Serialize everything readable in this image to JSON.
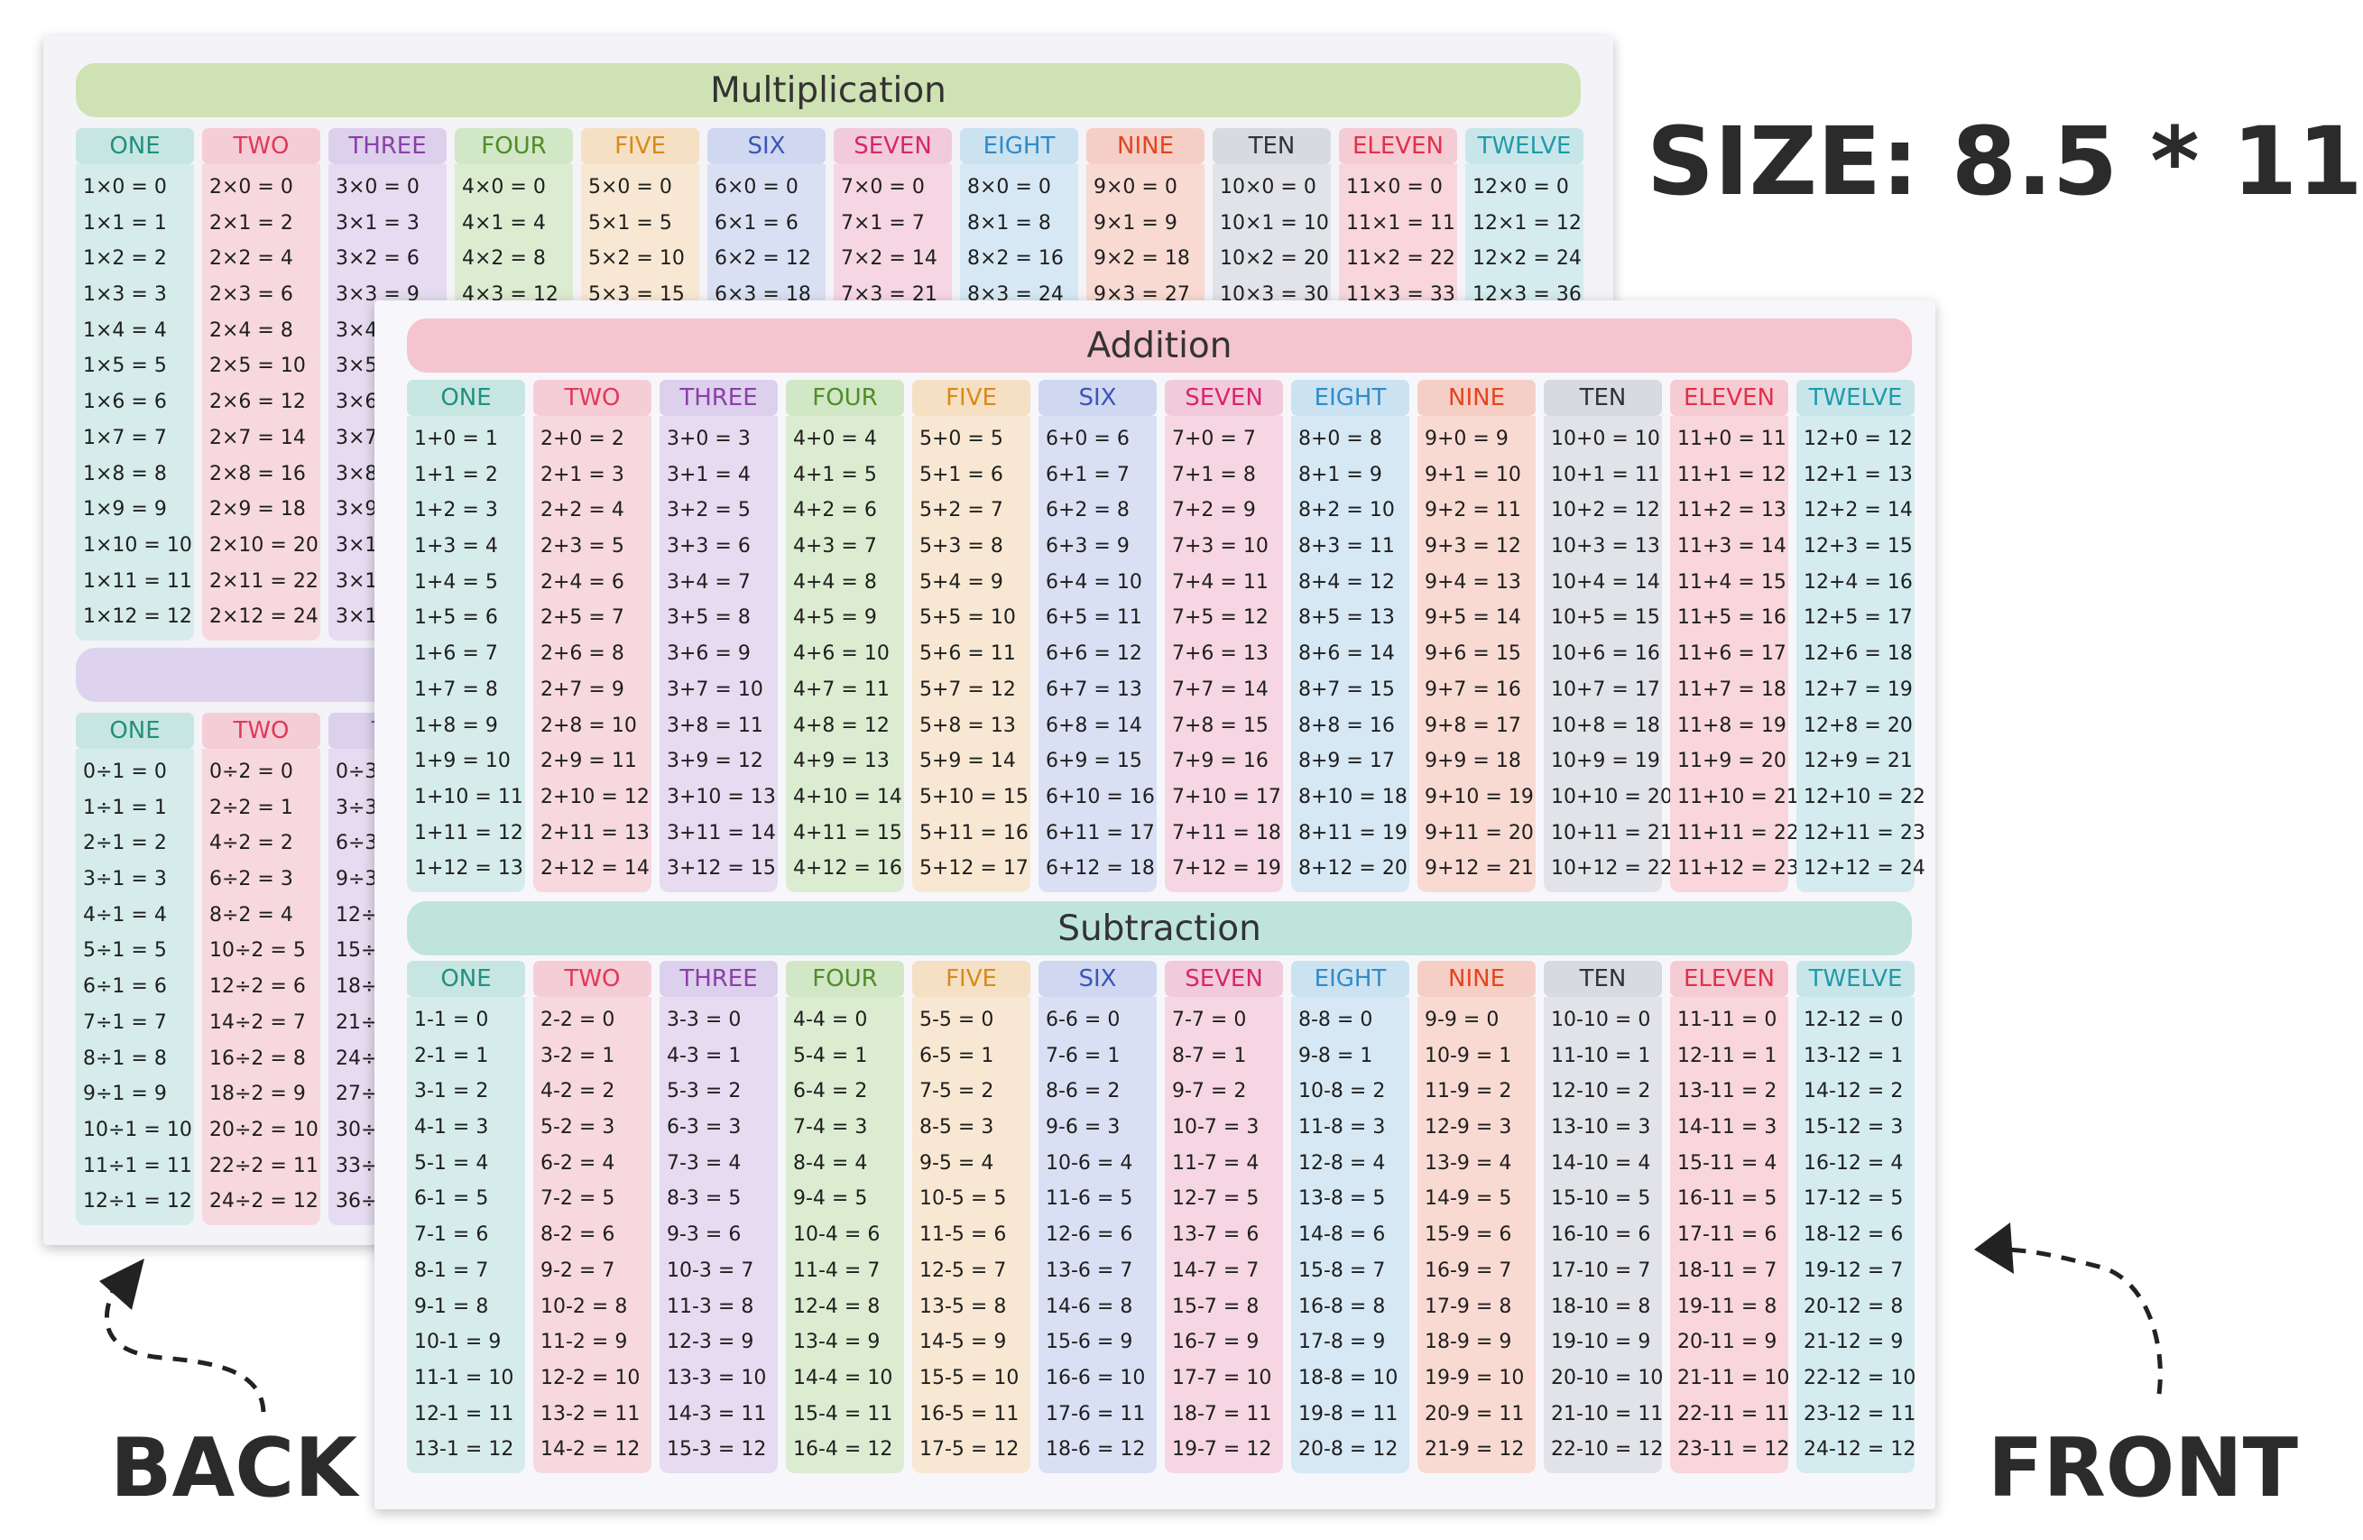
{
  "size_label": "SIZE: 8.5 * 11",
  "back_label": "BACK",
  "front_label": "FRONT",
  "column_headers": [
    "ONE",
    "TWO",
    "THREE",
    "FOUR",
    "FIVE",
    "SIX",
    "SEVEN",
    "EIGHT",
    "NINE",
    "TEN",
    "ELEVEN",
    "TWELVE"
  ],
  "column_colors": [
    "#21907f",
    "#e0395a",
    "#8b3fa8",
    "#4f8c2a",
    "#d98a1a",
    "#3b55b8",
    "#d6266e",
    "#2f8bc9",
    "#e2451f",
    "#333333",
    "#e0304b",
    "#1f9aa8"
  ],
  "column_tints": [
    "#d5ecea",
    "#f7d8df",
    "#e6dbf0",
    "#dcecd1",
    "#f8e8d3",
    "#d9e0f3",
    "#f6d6e2",
    "#d6e8f4",
    "#f8dad2",
    "#e1e3e8",
    "#f8d6db",
    "#d4ecef"
  ],
  "header_backgrounds": [
    "#c7e6e2",
    "#f5cdd6",
    "#ddd0ec",
    "#d2e7c5",
    "#f5e0c4",
    "#cfd8f0",
    "#f2cbdb",
    "#cbe2f1",
    "#f5cfc5",
    "#d7dae1",
    "#f5ccd3",
    "#c8e6ea"
  ],
  "back": {
    "multiplication_title": "Multiplication",
    "multiplication_color": "#cfe2b4",
    "division_color": "#ddd3ef",
    "multiplication": [
      [
        "1×0 = 0",
        "1×1 = 1",
        "1×2 = 2",
        "1×3 = 3",
        "1×4 = 4",
        "1×5 = 5",
        "1×6 = 6",
        "1×7 = 7",
        "1×8 = 8",
        "1×9 = 9",
        "1×10 = 10",
        "1×11 = 11",
        "1×12 = 12"
      ],
      [
        "2×0 = 0",
        "2×1 = 2",
        "2×2 = 4",
        "2×3 = 6",
        "2×4 = 8",
        "2×5 = 10",
        "2×6 = 12",
        "2×7 = 14",
        "2×8 = 16",
        "2×9 = 18",
        "2×10 = 20",
        "2×11 = 22",
        "2×12 = 24"
      ],
      [
        "3×0 = 0",
        "3×1 = 3",
        "3×2 = 6",
        "3×3 = 9",
        "3×4",
        "3×5",
        "3×6",
        "3×7",
        "3×8",
        "3×9",
        "3×1",
        "3×1",
        "3×1"
      ],
      [
        "4×0 = 0",
        "4×1 = 4",
        "4×2 = 8",
        "4×3 = 12"
      ],
      [
        "5×0 = 0",
        "5×1 = 5",
        "5×2 = 10",
        "5×3 = 15"
      ],
      [
        "6×0 = 0",
        "6×1 = 6",
        "6×2 = 12",
        "6×3 = 18"
      ],
      [
        "7×0 = 0",
        "7×1 = 7",
        "7×2 = 14",
        "7×3 = 21"
      ],
      [
        "8×0 = 0",
        "8×1 = 8",
        "8×2 = 16",
        "8×3 = 24"
      ],
      [
        "9×0 = 0",
        "9×1 = 9",
        "9×2 = 18",
        "9×3 = 27"
      ],
      [
        "10×0 = 0",
        "10×1 = 10",
        "10×2 = 20",
        "10×3 = 30"
      ],
      [
        "11×0 = 0",
        "11×1 = 11",
        "11×2 = 22",
        "11×3 = 33"
      ],
      [
        "12×0 = 0",
        "12×1 = 12",
        "12×2 = 24",
        "12×3 = 36"
      ]
    ],
    "division_headers": [
      "ONE",
      "TWO",
      "TH"
    ],
    "division": [
      [
        "0÷1 = 0",
        "1÷1 = 1",
        "2÷1 = 2",
        "3÷1 = 3",
        "4÷1 = 4",
        "5÷1 = 5",
        "6÷1 = 6",
        "7÷1 = 7",
        "8÷1 = 8",
        "9÷1 = 9",
        "10÷1 = 10",
        "11÷1 = 11",
        "12÷1 = 12"
      ],
      [
        "0÷2 = 0",
        "2÷2 = 1",
        "4÷2 = 2",
        "6÷2 = 3",
        "8÷2 = 4",
        "10÷2 = 5",
        "12÷2 = 6",
        "14÷2 = 7",
        "16÷2 = 8",
        "18÷2 = 9",
        "20÷2 = 10",
        "22÷2 = 11",
        "24÷2 = 12"
      ],
      [
        "0÷3",
        "3÷3",
        "6÷3",
        "9÷3",
        "12÷",
        "15÷",
        "18÷",
        "21÷",
        "24÷",
        "27÷",
        "30÷",
        "33÷",
        "36÷"
      ]
    ]
  },
  "front": {
    "addition_title": "Addition",
    "addition_color": "#f4c4cf",
    "subtraction_title": "Subtraction",
    "subtraction_color": "#bfe4dc",
    "addition": [
      [
        "1+0 = 1",
        "1+1 = 2",
        "1+2 = 3",
        "1+3 = 4",
        "1+4 = 5",
        "1+5 = 6",
        "1+6 = 7",
        "1+7 = 8",
        "1+8 = 9",
        "1+9 = 10",
        "1+10 = 11",
        "1+11 = 12",
        "1+12 = 13"
      ],
      [
        "2+0 = 2",
        "2+1 = 3",
        "2+2 = 4",
        "2+3 = 5",
        "2+4 = 6",
        "2+5 = 7",
        "2+6 = 8",
        "2+7 = 9",
        "2+8 = 10",
        "2+9 = 11",
        "2+10 = 12",
        "2+11 = 13",
        "2+12 = 14"
      ],
      [
        "3+0 = 3",
        "3+1 = 4",
        "3+2 = 5",
        "3+3 = 6",
        "3+4 = 7",
        "3+5 = 8",
        "3+6 = 9",
        "3+7 = 10",
        "3+8 = 11",
        "3+9 = 12",
        "3+10 = 13",
        "3+11 = 14",
        "3+12 = 15"
      ],
      [
        "4+0 = 4",
        "4+1 = 5",
        "4+2 = 6",
        "4+3 = 7",
        "4+4 = 8",
        "4+5 = 9",
        "4+6 = 10",
        "4+7 = 11",
        "4+8 = 12",
        "4+9 = 13",
        "4+10 = 14",
        "4+11 = 15",
        "4+12 = 16"
      ],
      [
        "5+0 = 5",
        "5+1 = 6",
        "5+2 = 7",
        "5+3 = 8",
        "5+4 = 9",
        "5+5 = 10",
        "5+6 = 11",
        "5+7 = 12",
        "5+8 = 13",
        "5+9 = 14",
        "5+10 = 15",
        "5+11 = 16",
        "5+12 = 17"
      ],
      [
        "6+0 = 6",
        "6+1 = 7",
        "6+2 = 8",
        "6+3 = 9",
        "6+4 = 10",
        "6+5 = 11",
        "6+6 = 12",
        "6+7 = 13",
        "6+8 = 14",
        "6+9 = 15",
        "6+10 = 16",
        "6+11 = 17",
        "6+12 = 18"
      ],
      [
        "7+0 = 7",
        "7+1 = 8",
        "7+2 = 9",
        "7+3 = 10",
        "7+4 = 11",
        "7+5 = 12",
        "7+6 = 13",
        "7+7 = 14",
        "7+8 = 15",
        "7+9 = 16",
        "7+10 = 17",
        "7+11 = 18",
        "7+12 = 19"
      ],
      [
        "8+0 = 8",
        "8+1 = 9",
        "8+2 = 10",
        "8+3 = 11",
        "8+4 = 12",
        "8+5 = 13",
        "8+6 = 14",
        "8+7 = 15",
        "8+8 = 16",
        "8+9 = 17",
        "8+10 = 18",
        "8+11 = 19",
        "8+12 = 20"
      ],
      [
        "9+0 = 9",
        "9+1 = 10",
        "9+2 = 11",
        "9+3 = 12",
        "9+4 = 13",
        "9+5 = 14",
        "9+6 = 15",
        "9+7 = 16",
        "9+8 = 17",
        "9+9 = 18",
        "9+10 = 19",
        "9+11 = 20",
        "9+12 = 21"
      ],
      [
        "10+0 = 10",
        "10+1 = 11",
        "10+2 = 12",
        "10+3 = 13",
        "10+4 = 14",
        "10+5 = 15",
        "10+6 = 16",
        "10+7 = 17",
        "10+8 = 18",
        "10+9 = 19",
        "10+10 = 20",
        "10+11 = 21",
        "10+12 = 22"
      ],
      [
        "11+0 = 11",
        "11+1 = 12",
        "11+2 = 13",
        "11+3 = 14",
        "11+4 = 15",
        "11+5 = 16",
        "11+6 = 17",
        "11+7 = 18",
        "11+8 = 19",
        "11+9 = 20",
        "11+10 = 21",
        "11+11 = 22",
        "11+12 = 23"
      ],
      [
        "12+0 = 12",
        "12+1 = 13",
        "12+2 = 14",
        "12+3 = 15",
        "12+4 = 16",
        "12+5 = 17",
        "12+6 = 18",
        "12+7 = 19",
        "12+8 = 20",
        "12+9 = 21",
        "12+10 = 22",
        "12+11 = 23",
        "12+12 = 24"
      ]
    ],
    "subtraction": [
      [
        "1-1 = 0",
        "2-1 = 1",
        "3-1 = 2",
        "4-1 = 3",
        "5-1 = 4",
        "6-1 = 5",
        "7-1 = 6",
        "8-1 = 7",
        "9-1 = 8",
        "10-1 = 9",
        "11-1 = 10",
        "12-1 = 11",
        "13-1 = 12"
      ],
      [
        "2-2 = 0",
        "3-2 = 1",
        "4-2 = 2",
        "5-2 = 3",
        "6-2 = 4",
        "7-2 = 5",
        "8-2 = 6",
        "9-2 = 7",
        "10-2 = 8",
        "11-2 = 9",
        "12-2 = 10",
        "13-2 = 11",
        "14-2 = 12"
      ],
      [
        "3-3 = 0",
        "4-3 = 1",
        "5-3 = 2",
        "6-3 = 3",
        "7-3 = 4",
        "8-3 = 5",
        "9-3 = 6",
        "10-3 = 7",
        "11-3 = 8",
        "12-3 = 9",
        "13-3 = 10",
        "14-3 = 11",
        "15-3 = 12"
      ],
      [
        "4-4 = 0",
        "5-4 = 1",
        "6-4 = 2",
        "7-4 = 3",
        "8-4 = 4",
        "9-4 = 5",
        "10-4 = 6",
        "11-4 = 7",
        "12-4 = 8",
        "13-4 = 9",
        "14-4 = 10",
        "15-4 = 11",
        "16-4 = 12"
      ],
      [
        "5-5 = 0",
        "6-5 = 1",
        "7-5 = 2",
        "8-5 = 3",
        "9-5 = 4",
        "10-5 = 5",
        "11-5 = 6",
        "12-5 = 7",
        "13-5 = 8",
        "14-5 = 9",
        "15-5 = 10",
        "16-5 = 11",
        "17-5 = 12"
      ],
      [
        "6-6 = 0",
        "7-6 = 1",
        "8-6 = 2",
        "9-6 = 3",
        "10-6 = 4",
        "11-6 = 5",
        "12-6 = 6",
        "13-6 = 7",
        "14-6 = 8",
        "15-6 = 9",
        "16-6 = 10",
        "17-6 = 11",
        "18-6 = 12"
      ],
      [
        "7-7 = 0",
        "8-7 = 1",
        "9-7 = 2",
        "10-7 = 3",
        "11-7 = 4",
        "12-7 = 5",
        "13-7 = 6",
        "14-7 = 7",
        "15-7 = 8",
        "16-7 = 9",
        "17-7 = 10",
        "18-7 = 11",
        "19-7 = 12"
      ],
      [
        "8-8 = 0",
        "9-8 = 1",
        "10-8 = 2",
        "11-8 = 3",
        "12-8 = 4",
        "13-8 = 5",
        "14-8 = 6",
        "15-8 = 7",
        "16-8 = 8",
        "17-8 = 9",
        "18-8 = 10",
        "19-8 = 11",
        "20-8 = 12"
      ],
      [
        "9-9 = 0",
        "10-9 = 1",
        "11-9 = 2",
        "12-9 = 3",
        "13-9 = 4",
        "14-9 = 5",
        "15-9 = 6",
        "16-9 = 7",
        "17-9 = 8",
        "18-9 = 9",
        "19-9 = 10",
        "20-9 = 11",
        "21-9 = 12"
      ],
      [
        "10-10 = 0",
        "11-10 = 1",
        "12-10 = 2",
        "13-10 = 3",
        "14-10 = 4",
        "15-10 = 5",
        "16-10 = 6",
        "17-10 = 7",
        "18-10 = 8",
        "19-10 = 9",
        "20-10 = 10",
        "21-10 = 11",
        "22-10 = 12"
      ],
      [
        "11-11 = 0",
        "12-11 = 1",
        "13-11 = 2",
        "14-11 = 3",
        "15-11 = 4",
        "16-11 = 5",
        "17-11 = 6",
        "18-11 = 7",
        "19-11 = 8",
        "20-11 = 9",
        "21-11 = 10",
        "22-11 = 11",
        "23-11 = 12"
      ],
      [
        "12-12 = 0",
        "13-12 = 1",
        "14-12 = 2",
        "15-12 = 3",
        "16-12 = 4",
        "17-12 = 5",
        "18-12 = 6",
        "19-12 = 7",
        "20-12 = 8",
        "21-12 = 9",
        "22-12 = 10",
        "23-12 = 11",
        "24-12 = 12"
      ]
    ]
  }
}
